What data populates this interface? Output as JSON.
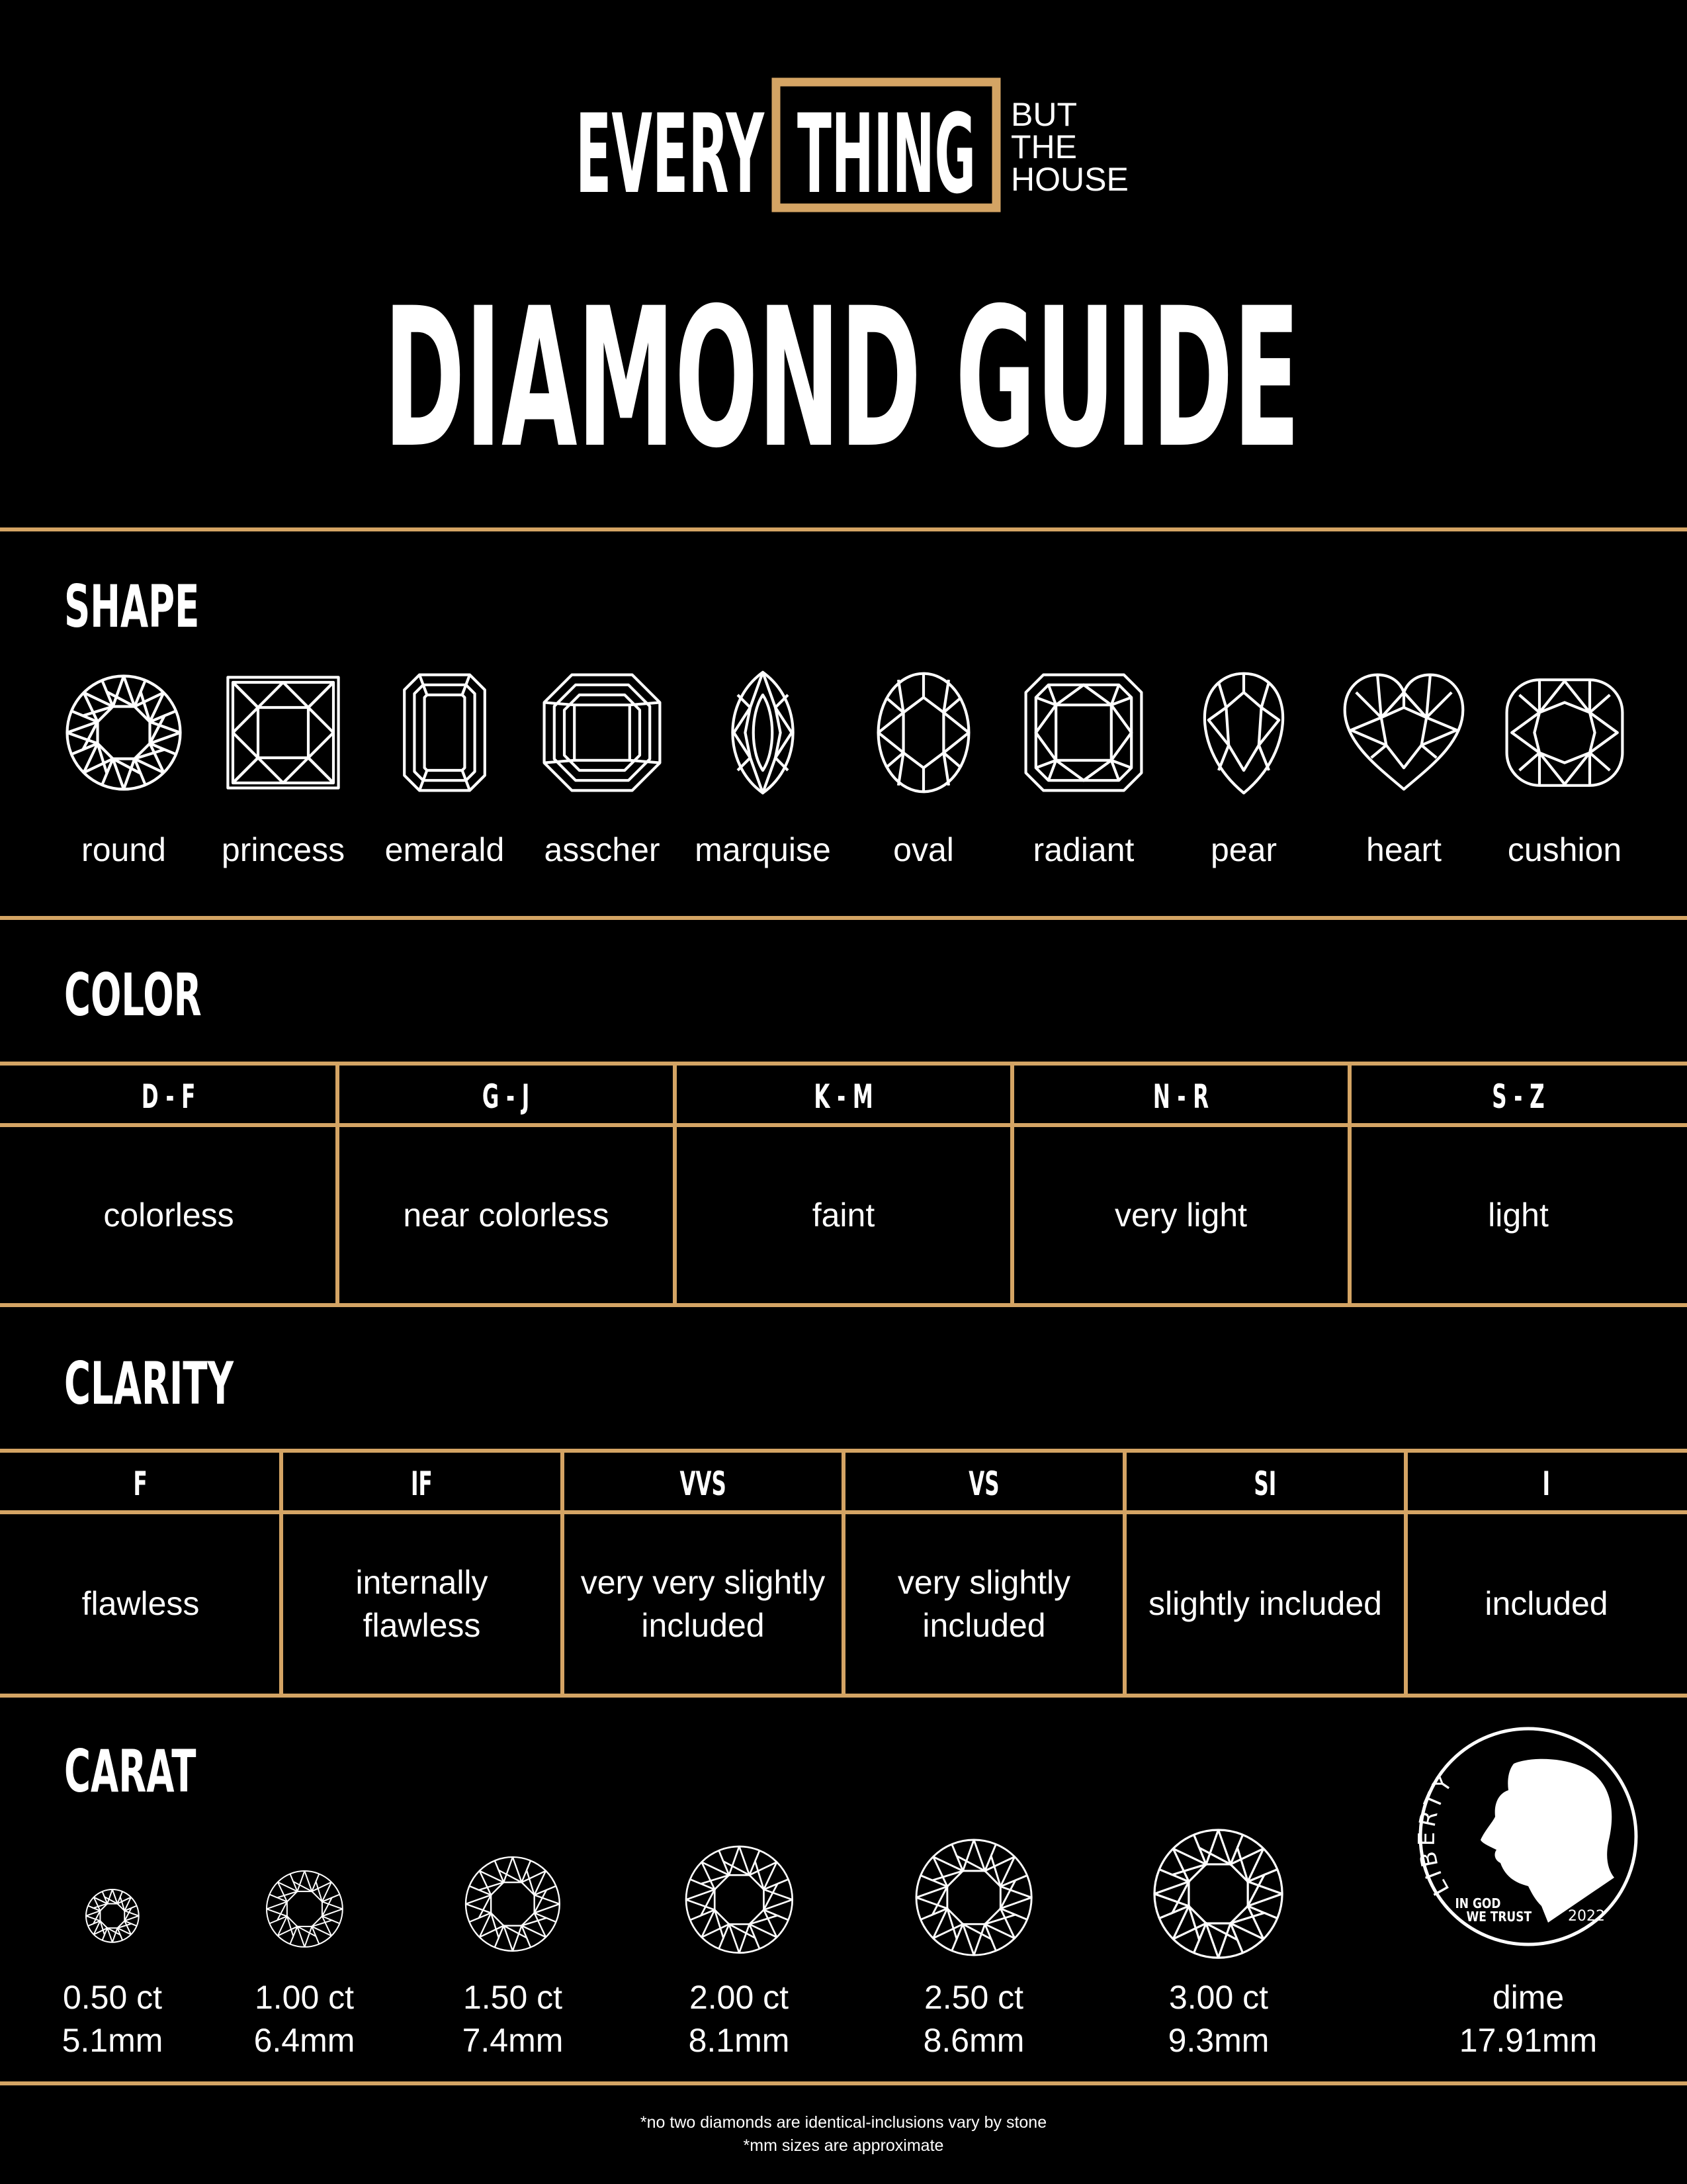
{
  "logo": {
    "every": "EVERY",
    "thing": "THING",
    "but": "BUT",
    "the": "THE",
    "house": "HOUSE"
  },
  "title": "DIAMOND GUIDE",
  "colors": {
    "background": "#000000",
    "accent_gold": "#d4a464",
    "text": "#ffffff"
  },
  "shape": {
    "heading": "SHAPE",
    "items": [
      {
        "label": "round",
        "icon": "round-diamond-icon"
      },
      {
        "label": "princess",
        "icon": "princess-diamond-icon"
      },
      {
        "label": "emerald",
        "icon": "emerald-diamond-icon"
      },
      {
        "label": "asscher",
        "icon": "asscher-diamond-icon"
      },
      {
        "label": "marquise",
        "icon": "marquise-diamond-icon"
      },
      {
        "label": "oval",
        "icon": "oval-diamond-icon"
      },
      {
        "label": "radiant",
        "icon": "radiant-diamond-icon"
      },
      {
        "label": "pear",
        "icon": "pear-diamond-icon"
      },
      {
        "label": "heart",
        "icon": "heart-diamond-icon"
      },
      {
        "label": "cushion",
        "icon": "cushion-diamond-icon"
      }
    ]
  },
  "color": {
    "heading": "COLOR",
    "columns": [
      {
        "grade": "D - F",
        "desc": "colorless"
      },
      {
        "grade": "G - J",
        "desc": "near colorless"
      },
      {
        "grade": "K - M",
        "desc": "faint"
      },
      {
        "grade": "N - R",
        "desc": "very light"
      },
      {
        "grade": "S - Z",
        "desc": "light"
      }
    ]
  },
  "clarity": {
    "heading": "CLARITY",
    "columns": [
      {
        "grade": "F",
        "desc": "flawless"
      },
      {
        "grade": "IF",
        "desc": "internally flawless"
      },
      {
        "grade": "VVS",
        "desc": "very very slightly included"
      },
      {
        "grade": "VS",
        "desc": "very slightly included"
      },
      {
        "grade": "SI",
        "desc": "slightly included"
      },
      {
        "grade": "I",
        "desc": "included"
      }
    ]
  },
  "carat": {
    "heading": "CARAT",
    "items": [
      {
        "carat": "0.50 ct",
        "size": "5.1mm",
        "mm": 5.1
      },
      {
        "carat": "1.00 ct",
        "size": "6.4mm",
        "mm": 6.4
      },
      {
        "carat": "1.50 ct",
        "size": "7.4mm",
        "mm": 7.4
      },
      {
        "carat": "2.00 ct",
        "size": "8.1mm",
        "mm": 8.1
      },
      {
        "carat": "2.50 ct",
        "size": "8.6mm",
        "mm": 8.6
      },
      {
        "carat": "3.00 ct",
        "size": "9.3mm",
        "mm": 9.3
      }
    ],
    "dime": {
      "label": "dime",
      "size": "17.91mm",
      "coin_liberty": "LIBERTY",
      "coin_motto_1": "IN GOD",
      "coin_motto_2": "WE TRUST",
      "coin_year": "2022"
    }
  },
  "footer": {
    "note_1": "*no two diamonds are identical-inclusions vary by stone",
    "note_2": "*mm sizes are approximate"
  }
}
